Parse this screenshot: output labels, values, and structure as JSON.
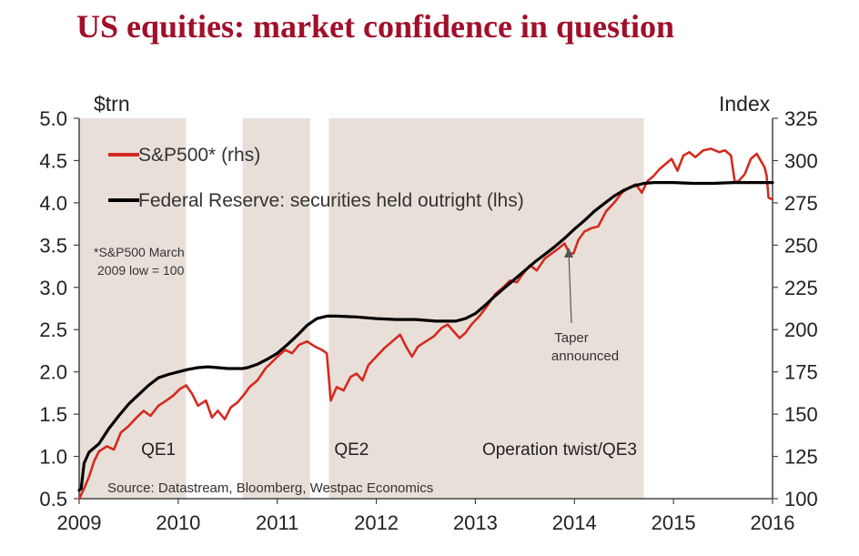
{
  "chart_data": {
    "type": "line",
    "title": "US equities: market confidence in question",
    "y_left_label": "$trn",
    "y_right_label": "Index",
    "x_ticks": [
      "2009",
      "2010",
      "2011",
      "2012",
      "2013",
      "2014",
      "2015",
      "2016"
    ],
    "y_left_ticks": [
      "0.5",
      "1.0",
      "1.5",
      "2.0",
      "2.5",
      "3.0",
      "3.5",
      "4.0",
      "4.5",
      "5.0"
    ],
    "y_right_ticks": [
      "100",
      "125",
      "150",
      "175",
      "200",
      "225",
      "250",
      "275",
      "300",
      "325"
    ],
    "xlim": [
      2009.0,
      2016.0
    ],
    "ylim_left": [
      0.5,
      5.0
    ],
    "ylim_right": [
      100,
      325
    ],
    "shaded_periods": [
      {
        "label": "QE1",
        "start": 2009.0,
        "end": 2010.08
      },
      {
        "label": "",
        "start": 2010.65,
        "end": 2011.33
      },
      {
        "label": "QE2",
        "start": 2011.5,
        "end": 2011.5
      },
      {
        "label": "Operation twist/QE3",
        "start": 2011.52,
        "end": 2014.7
      }
    ],
    "band_labels": [
      {
        "text": "QE1",
        "x": 2009.8
      },
      {
        "text": "QE2",
        "x": 2011.75
      },
      {
        "text": "Operation twist/QE3",
        "x": 2013.85
      }
    ],
    "series": [
      {
        "name": "S&P500* (rhs)",
        "axis": "right",
        "color": "#d42a20",
        "points": [
          [
            2009.0,
            100
          ],
          [
            2009.05,
            106
          ],
          [
            2009.1,
            113
          ],
          [
            2009.15,
            122
          ],
          [
            2009.2,
            128
          ],
          [
            2009.28,
            131
          ],
          [
            2009.35,
            129
          ],
          [
            2009.42,
            139
          ],
          [
            2009.5,
            143
          ],
          [
            2009.58,
            148
          ],
          [
            2009.65,
            152
          ],
          [
            2009.72,
            149
          ],
          [
            2009.8,
            155
          ],
          [
            2009.88,
            158
          ],
          [
            2009.95,
            161
          ],
          [
            2010.02,
            165
          ],
          [
            2010.08,
            167
          ],
          [
            2010.14,
            162
          ],
          [
            2010.2,
            155
          ],
          [
            2010.28,
            158
          ],
          [
            2010.34,
            148
          ],
          [
            2010.4,
            152
          ],
          [
            2010.47,
            147
          ],
          [
            2010.53,
            154
          ],
          [
            2010.6,
            157
          ],
          [
            2010.67,
            162
          ],
          [
            2010.72,
            166
          ],
          [
            2010.8,
            170
          ],
          [
            2010.88,
            177
          ],
          [
            2010.95,
            181
          ],
          [
            2011.02,
            185
          ],
          [
            2011.08,
            188
          ],
          [
            2011.15,
            186
          ],
          [
            2011.22,
            191
          ],
          [
            2011.3,
            193
          ],
          [
            2011.38,
            190
          ],
          [
            2011.45,
            188
          ],
          [
            2011.5,
            186
          ],
          [
            2011.54,
            158
          ],
          [
            2011.6,
            166
          ],
          [
            2011.67,
            164
          ],
          [
            2011.74,
            172
          ],
          [
            2011.8,
            174
          ],
          [
            2011.86,
            170
          ],
          [
            2011.92,
            179
          ],
          [
            2012.0,
            184
          ],
          [
            2012.08,
            189
          ],
          [
            2012.16,
            193
          ],
          [
            2012.24,
            197
          ],
          [
            2012.3,
            190
          ],
          [
            2012.36,
            184
          ],
          [
            2012.42,
            190
          ],
          [
            2012.5,
            193
          ],
          [
            2012.58,
            196
          ],
          [
            2012.66,
            201
          ],
          [
            2012.72,
            203
          ],
          [
            2012.78,
            199
          ],
          [
            2012.84,
            195
          ],
          [
            2012.9,
            198
          ],
          [
            2012.96,
            203
          ],
          [
            2013.04,
            208
          ],
          [
            2013.12,
            214
          ],
          [
            2013.2,
            221
          ],
          [
            2013.28,
            225
          ],
          [
            2013.35,
            229
          ],
          [
            2013.42,
            228
          ],
          [
            2013.48,
            233
          ],
          [
            2013.55,
            238
          ],
          [
            2013.62,
            235
          ],
          [
            2013.7,
            242
          ],
          [
            2013.77,
            245
          ],
          [
            2013.84,
            248
          ],
          [
            2013.9,
            251
          ],
          [
            2013.95,
            245
          ],
          [
            2013.99,
            245
          ],
          [
            2014.04,
            253
          ],
          [
            2014.1,
            258
          ],
          [
            2014.17,
            260
          ],
          [
            2014.24,
            261
          ],
          [
            2014.32,
            270
          ],
          [
            2014.4,
            275
          ],
          [
            2014.48,
            281
          ],
          [
            2014.55,
            284
          ],
          [
            2014.62,
            286
          ],
          [
            2014.68,
            281
          ],
          [
            2014.74,
            288
          ],
          [
            2014.8,
            291
          ],
          [
            2014.86,
            295
          ],
          [
            2014.92,
            298
          ],
          [
            2014.98,
            301
          ],
          [
            2015.04,
            294
          ],
          [
            2015.1,
            303
          ],
          [
            2015.16,
            305
          ],
          [
            2015.22,
            302
          ],
          [
            2015.3,
            306
          ],
          [
            2015.38,
            307
          ],
          [
            2015.46,
            305
          ],
          [
            2015.52,
            306
          ],
          [
            2015.58,
            303
          ],
          [
            2015.62,
            287
          ],
          [
            2015.66,
            288
          ],
          [
            2015.72,
            292
          ],
          [
            2015.78,
            301
          ],
          [
            2015.84,
            304
          ],
          [
            2015.88,
            300
          ],
          [
            2015.92,
            296
          ],
          [
            2015.94,
            291
          ],
          [
            2015.96,
            278
          ],
          [
            2016.0,
            277
          ]
        ]
      },
      {
        "name": "Federal Reserve: securities held outright (lhs)",
        "axis": "left",
        "color": "#000000",
        "points": [
          [
            2009.0,
            0.6
          ],
          [
            2009.02,
            0.62
          ],
          [
            2009.05,
            0.92
          ],
          [
            2009.1,
            1.05
          ],
          [
            2009.2,
            1.15
          ],
          [
            2009.3,
            1.33
          ],
          [
            2009.4,
            1.48
          ],
          [
            2009.5,
            1.62
          ],
          [
            2009.6,
            1.73
          ],
          [
            2009.7,
            1.84
          ],
          [
            2009.8,
            1.93
          ],
          [
            2009.9,
            1.97
          ],
          [
            2010.0,
            2.0
          ],
          [
            2010.1,
            2.03
          ],
          [
            2010.2,
            2.05
          ],
          [
            2010.3,
            2.06
          ],
          [
            2010.4,
            2.05
          ],
          [
            2010.5,
            2.04
          ],
          [
            2010.6,
            2.04
          ],
          [
            2010.65,
            2.04
          ],
          [
            2010.7,
            2.05
          ],
          [
            2010.8,
            2.09
          ],
          [
            2010.9,
            2.15
          ],
          [
            2011.0,
            2.22
          ],
          [
            2011.1,
            2.32
          ],
          [
            2011.2,
            2.43
          ],
          [
            2011.3,
            2.55
          ],
          [
            2011.4,
            2.63
          ],
          [
            2011.5,
            2.66
          ],
          [
            2011.6,
            2.66
          ],
          [
            2011.8,
            2.65
          ],
          [
            2012.0,
            2.63
          ],
          [
            2012.2,
            2.62
          ],
          [
            2012.4,
            2.62
          ],
          [
            2012.6,
            2.6
          ],
          [
            2012.8,
            2.6
          ],
          [
            2012.9,
            2.63
          ],
          [
            2013.0,
            2.69
          ],
          [
            2013.1,
            2.79
          ],
          [
            2013.2,
            2.9
          ],
          [
            2013.3,
            3.0
          ],
          [
            2013.4,
            3.1
          ],
          [
            2013.5,
            3.2
          ],
          [
            2013.6,
            3.3
          ],
          [
            2013.7,
            3.39
          ],
          [
            2013.8,
            3.48
          ],
          [
            2013.9,
            3.58
          ],
          [
            2014.0,
            3.69
          ],
          [
            2014.1,
            3.79
          ],
          [
            2014.2,
            3.9
          ],
          [
            2014.3,
            3.99
          ],
          [
            2014.4,
            4.08
          ],
          [
            2014.5,
            4.15
          ],
          [
            2014.6,
            4.2
          ],
          [
            2014.7,
            4.23
          ],
          [
            2014.8,
            4.24
          ],
          [
            2015.0,
            4.24
          ],
          [
            2015.2,
            4.23
          ],
          [
            2015.4,
            4.23
          ],
          [
            2015.6,
            4.24
          ],
          [
            2015.8,
            4.24
          ],
          [
            2016.0,
            4.24
          ]
        ]
      }
    ],
    "legend": [
      "S&P500* (rhs)",
      "Federal Reserve: securities held outright (lhs)"
    ],
    "annotations": [
      {
        "text": "Taper",
        "x": 2014.0
      },
      {
        "text": "announced",
        "x": 2014.0
      }
    ],
    "footnote_lines": [
      "*S&P500 March",
      "2009  low = 100"
    ],
    "source": "Source: Datastream, Bloomberg, Westpac Economics"
  }
}
